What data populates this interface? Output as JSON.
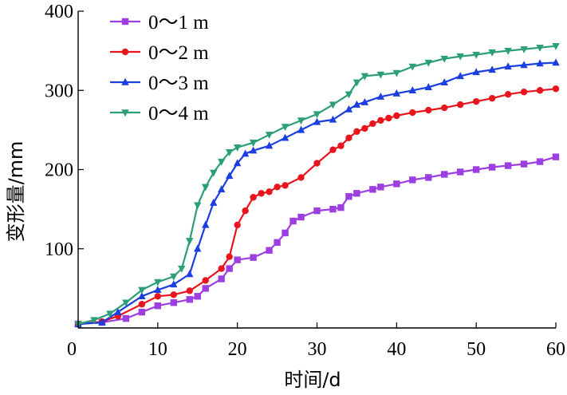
{
  "chart_data": {
    "type": "line",
    "title": "",
    "xlabel": "时间/d",
    "ylabel": "变形量/mm",
    "xlim": [
      0,
      60
    ],
    "ylim": [
      0,
      400
    ],
    "xticks": [
      0,
      10,
      20,
      30,
      40,
      50,
      60
    ],
    "yticks": [
      100,
      200,
      300,
      400
    ],
    "xtick_labels": [
      "0",
      "10",
      "20",
      "30",
      "40",
      "50",
      "60"
    ],
    "ytick_labels": [
      "100",
      "200",
      "300",
      "400"
    ],
    "grid": false,
    "legend_position": "top-left",
    "series": [
      {
        "name": "0～1 m",
        "color": "#9d3fe0",
        "marker": "square",
        "x": [
          0,
          3,
          6,
          8,
          10,
          12,
          14,
          15,
          16,
          18,
          19,
          20,
          22,
          24,
          25,
          26,
          27,
          28,
          30,
          32,
          33,
          34,
          35,
          37,
          38,
          40,
          42,
          44,
          46,
          48,
          50,
          52,
          54,
          56,
          58,
          60
        ],
        "y": [
          5,
          7,
          12,
          20,
          28,
          32,
          36,
          40,
          50,
          62,
          75,
          86,
          89,
          98,
          108,
          120,
          135,
          140,
          148,
          150,
          152,
          166,
          170,
          175,
          178,
          182,
          187,
          190,
          194,
          197,
          200,
          203,
          205,
          207,
          210,
          216
        ]
      },
      {
        "name": "0～2 m",
        "color": "#e8141e",
        "marker": "circle",
        "x": [
          0,
          3,
          5,
          8,
          10,
          12,
          14,
          16,
          18,
          19,
          20,
          21,
          22,
          23,
          24,
          25,
          26,
          28,
          30,
          32,
          33,
          34,
          35,
          36,
          37,
          38,
          39,
          40,
          42,
          44,
          46,
          48,
          50,
          52,
          54,
          56,
          58,
          60
        ],
        "y": [
          5,
          8,
          15,
          30,
          40,
          42,
          47,
          60,
          75,
          90,
          130,
          148,
          165,
          170,
          172,
          178,
          180,
          190,
          208,
          225,
          230,
          240,
          248,
          252,
          258,
          262,
          265,
          268,
          272,
          275,
          278,
          282,
          286,
          290,
          295,
          298,
          300,
          302
        ]
      },
      {
        "name": "0～3 m",
        "color": "#1a3ee0",
        "marker": "triangle-up",
        "x": [
          0,
          3,
          5,
          8,
          10,
          12,
          14,
          15,
          16,
          17,
          18,
          19,
          20,
          21,
          22,
          24,
          26,
          28,
          30,
          32,
          34,
          35,
          36,
          38,
          40,
          42,
          44,
          46,
          48,
          50,
          52,
          54,
          56,
          58,
          60
        ],
        "y": [
          5,
          7,
          20,
          40,
          48,
          55,
          68,
          100,
          130,
          158,
          175,
          192,
          208,
          220,
          224,
          230,
          240,
          250,
          260,
          263,
          276,
          282,
          285,
          292,
          296,
          300,
          304,
          310,
          318,
          323,
          326,
          330,
          332,
          334,
          335
        ]
      },
      {
        "name": "0～4 m",
        "color": "#2c9e78",
        "marker": "triangle-down",
        "x": [
          0,
          2,
          4,
          6,
          8,
          10,
          12,
          13,
          14,
          15,
          16,
          17,
          18,
          19,
          20,
          22,
          24,
          26,
          28,
          30,
          32,
          34,
          35,
          36,
          38,
          40,
          42,
          44,
          46,
          48,
          50,
          52,
          54,
          56,
          58,
          60
        ],
        "y": [
          5,
          10,
          18,
          32,
          48,
          58,
          65,
          75,
          110,
          155,
          178,
          196,
          210,
          222,
          228,
          234,
          244,
          254,
          262,
          270,
          282,
          295,
          310,
          318,
          320,
          322,
          330,
          335,
          340,
          343,
          345,
          348,
          350,
          352,
          354,
          356
        ]
      }
    ]
  }
}
